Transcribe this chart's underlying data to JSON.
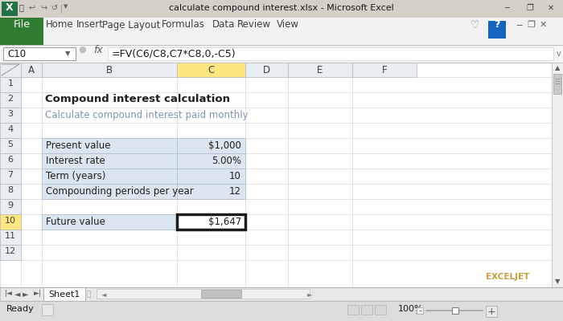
{
  "title_bar": "calculate compound interest.xlsx - Microsoft Excel",
  "formula_bar_ref": "C10",
  "formula_bar_text": "=FV(C6/C8,C7*C8,0,-C5)",
  "ribbon_tabs": [
    "File",
    "Home",
    "Insert",
    "Page Layout",
    "Formulas",
    "Data",
    "Review",
    "View"
  ],
  "heading": "Compound interest calculation",
  "subheading": "Calculate compound interest paid monthly",
  "table_rows": [
    {
      "label": "Present value",
      "value": "$1,000"
    },
    {
      "label": "Interest rate",
      "value": "5.00%"
    },
    {
      "label": "Term (years)",
      "value": "10"
    },
    {
      "label": "Compounding periods per year",
      "value": "12"
    }
  ],
  "result_label": "Future value",
  "result_value": "$1,647",
  "active_cell_col": "C",
  "active_col_bg": "#ffe680",
  "active_row_bg": "#ffe680",
  "table_bg": "#dce6f1",
  "table_border": "#aec1d4",
  "grid_color": "#d0d0d0",
  "col_header_bg": "#e8edf2",
  "row_header_bg": "#e8edf2",
  "subheading_color": "#7f7f7f",
  "heading_color": "#1f1f1f",
  "text_color": "#1f1f1f",
  "ribbon_bg": "#f2f2f2",
  "titlebar_bg": "#d4d0c8",
  "formula_bar_bg": "#ffffff",
  "sheet_bg": "#ffffff",
  "status_bar_bg": "#dcdcdc",
  "scrollbar_bg": "#f0f0f0",
  "exceljet_color": "#c8a040"
}
